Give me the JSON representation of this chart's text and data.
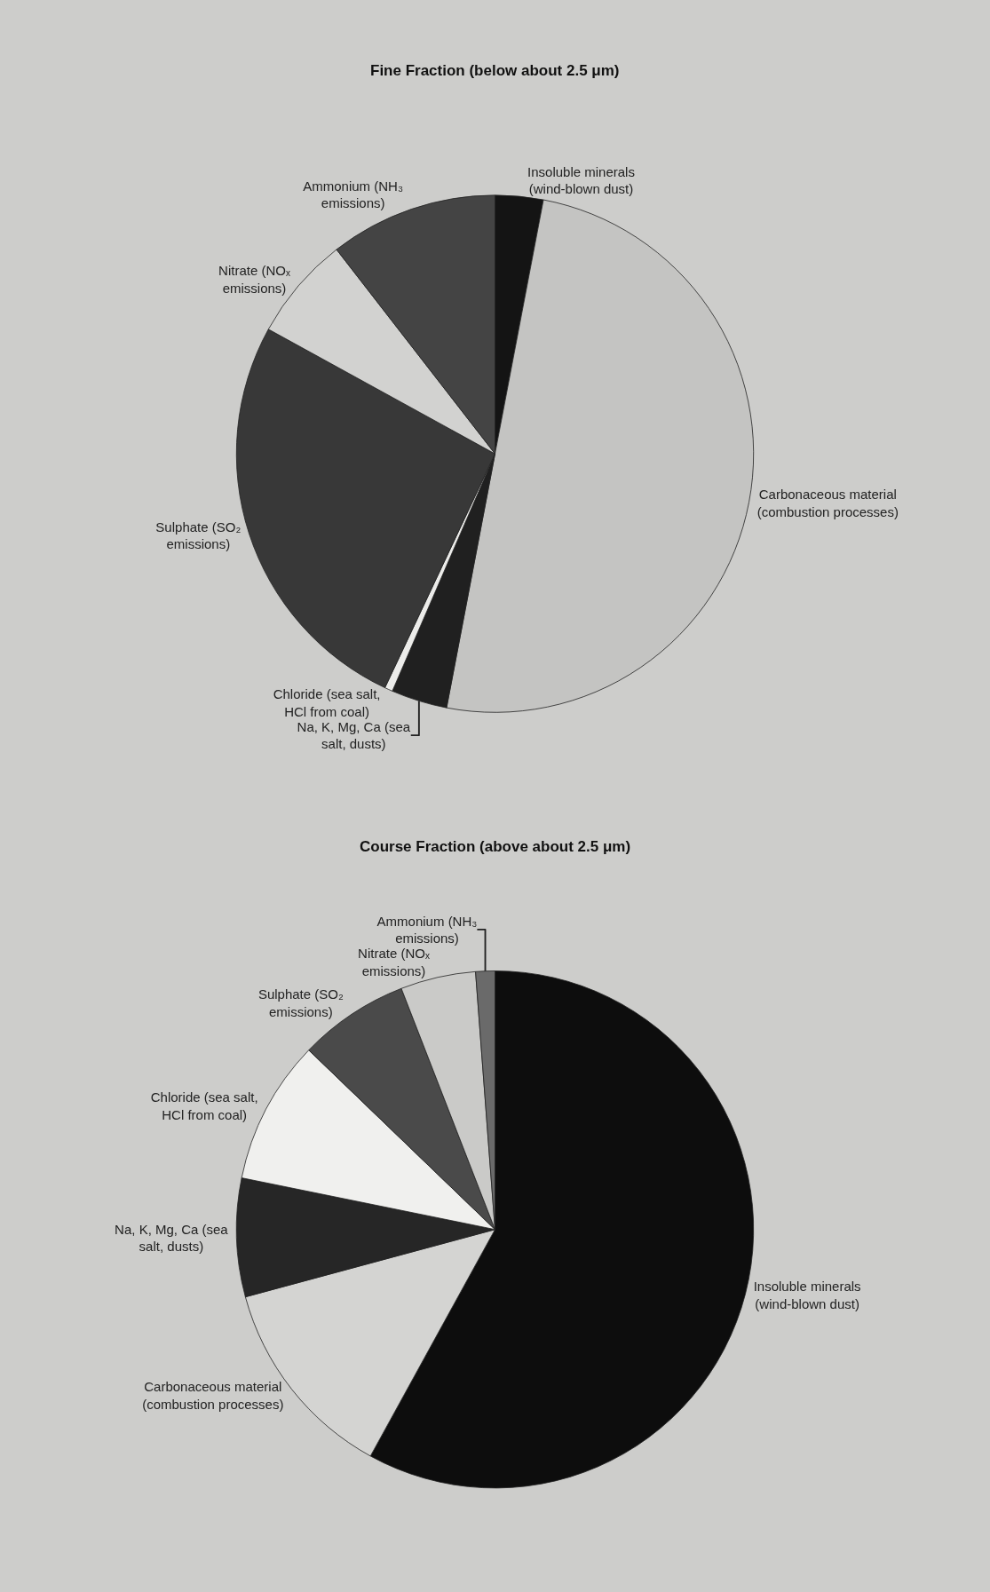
{
  "chart_data": [
    {
      "type": "pie",
      "title": "Fine Fraction (below about 2.5 μm)",
      "categories": [
        "Insoluble minerals (wind-blown dust)",
        "Carbonaceous material (combustion processes)",
        "Na, K, Mg, Ca (sea salt, dusts)",
        "Chloride (sea salt, HCl from coal)",
        "Sulphate (SO₂ emissions)",
        "Nitrate (NOₓ emissions)",
        "Ammonium (NH₃ emissions)"
      ],
      "values": [
        3,
        50,
        3.5,
        0.5,
        26,
        6.5,
        10.5
      ],
      "colors": [
        "#141414",
        "#c4c4c2",
        "#202020",
        "#ececea",
        "#383838",
        "#d2d2d0",
        "#444444"
      ]
    },
    {
      "type": "pie",
      "title": "Course Fraction (above about 2.5 μm)",
      "categories": [
        "Insoluble minerals (wind-blown dust)",
        "Carbonaceous material (combustion processes)",
        "Na, K, Mg, Ca (sea salt, dusts)",
        "Chloride (sea salt, HCl from coal)",
        "Sulphate (SO₂ emissions)",
        "Nitrate (NOₓ emissions)",
        "Ammonium (NH₃ emissions)"
      ],
      "values": [
        58,
        12.8,
        7.4,
        9,
        6.9,
        4.7,
        1.2
      ],
      "colors": [
        "#0d0d0d",
        "#d4d4d2",
        "#262626",
        "#f0f0ee",
        "#4a4a4a",
        "#cacac8",
        "#6a6a6a"
      ]
    }
  ]
}
